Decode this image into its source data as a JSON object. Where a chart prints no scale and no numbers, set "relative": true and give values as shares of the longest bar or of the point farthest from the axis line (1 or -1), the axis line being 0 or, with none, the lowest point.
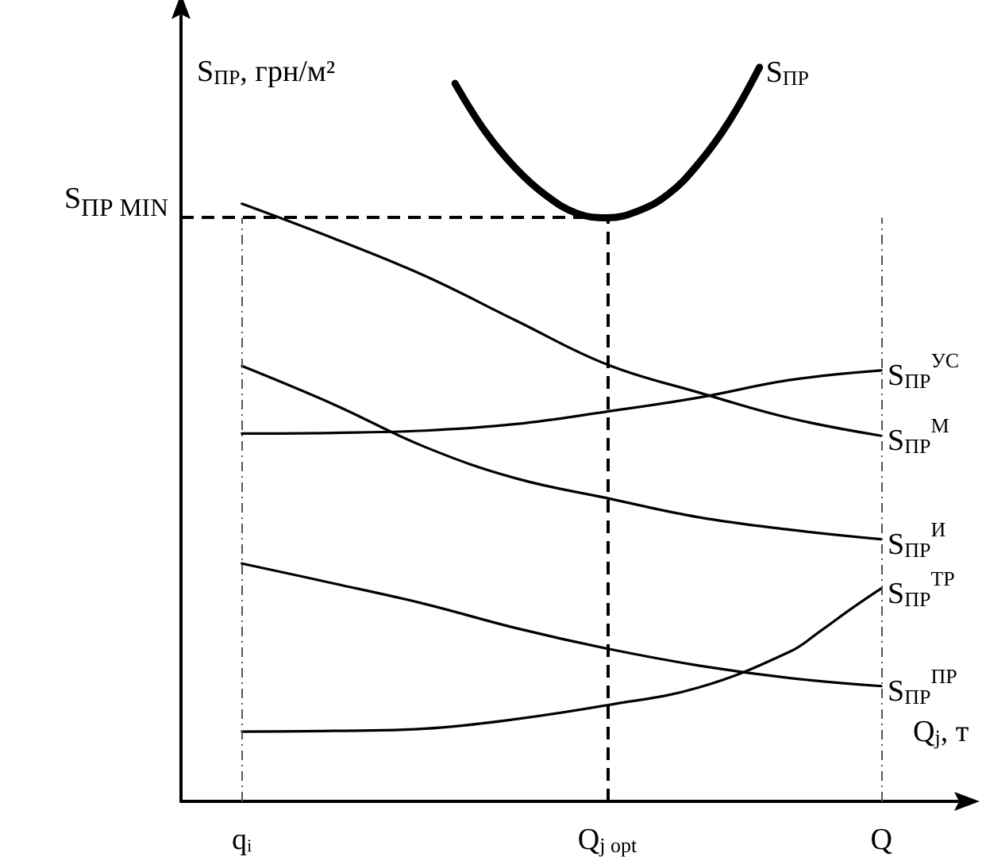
{
  "chart_data": {
    "type": "line",
    "relative": true,
    "xlabel": "Q$_{j}$, т",
    "ylabel": "S$_{ПР}$, грн/м²",
    "categories": [
      "qᵢ",
      null,
      null,
      null,
      null,
      null,
      null,
      null,
      null,
      null,
      null,
      null,
      "Q$_{j opt}$",
      null,
      null,
      null,
      null,
      null,
      null,
      null,
      null,
      "Q"
    ],
    "series": [
      {
        "name": "S$_{ПР}$",
        "color": "#000000",
        "values": [
          null,
          null,
          null,
          null,
          null,
          null,
          null,
          0.978,
          0.912,
          0.862,
          0.825,
          0.801,
          0.795,
          0.804,
          0.827,
          0.869,
          0.926,
          1,
          null,
          null,
          null,
          null
        ]
      },
      {
        "name": "S$_{ПР}$$^{УС}$",
        "color": "#000000",
        "values": [
          0.501,
          null,
          null,
          0.502,
          null,
          null,
          0.505,
          null,
          null,
          0.514,
          null,
          null,
          0.531,
          null,
          null,
          0.55,
          null,
          null,
          0.574,
          null,
          null,
          0.587
        ]
      },
      {
        "name": "S$_{ПР}$$^{М}$",
        "color": "#000000",
        "values": [
          0.814,
          null,
          null,
          0.767,
          null,
          null,
          0.716,
          null,
          null,
          0.655,
          null,
          null,
          0.595,
          null,
          null,
          0.557,
          null,
          null,
          0.522,
          null,
          null,
          0.498
        ]
      },
      {
        "name": "S$_{ПР}$$^{И}$",
        "color": "#000000",
        "values": [
          0.593,
          null,
          null,
          0.541,
          null,
          null,
          0.483,
          null,
          null,
          0.44,
          null,
          null,
          0.413,
          null,
          null,
          0.387,
          null,
          null,
          0.37,
          null,
          null,
          0.357
        ]
      },
      {
        "name": "S$_{ПР}$$^{ТР}$",
        "color": "#000000",
        "values": [
          0.095,
          null,
          null,
          0.096,
          null,
          null,
          0.099,
          null,
          null,
          0.112,
          null,
          null,
          0.131,
          null,
          null,
          0.155,
          null,
          null,
          0.204,
          0.232,
          0.262,
          0.29
        ]
      },
      {
        "name": "S$_{ПР}$$^{ПР}$",
        "color": "#000000",
        "values": [
          0.324,
          null,
          null,
          0.297,
          null,
          null,
          0.269,
          null,
          null,
          0.236,
          null,
          null,
          0.208,
          null,
          null,
          0.185,
          null,
          null,
          0.168,
          null,
          null,
          0.157
        ]
      }
    ],
    "ref_lines": [
      {
        "axis": "y",
        "value": 0.795,
        "label": "S$_{ПР MIN}$",
        "line_style": "dashed",
        "color": "#000000"
      },
      {
        "axis": "x",
        "value": "Q$_{j opt}$",
        "line_style": "dashed",
        "color": "#000000"
      },
      {
        "axis": "x",
        "value": "qᵢ",
        "line_style": "dotted",
        "color": "#555555"
      },
      {
        "axis": "x",
        "value": "Q",
        "line_style": "dotted",
        "color": "#555555"
      }
    ],
    "legend": false,
    "grid": false,
    "marker": "none",
    "line_style": "solid"
  }
}
